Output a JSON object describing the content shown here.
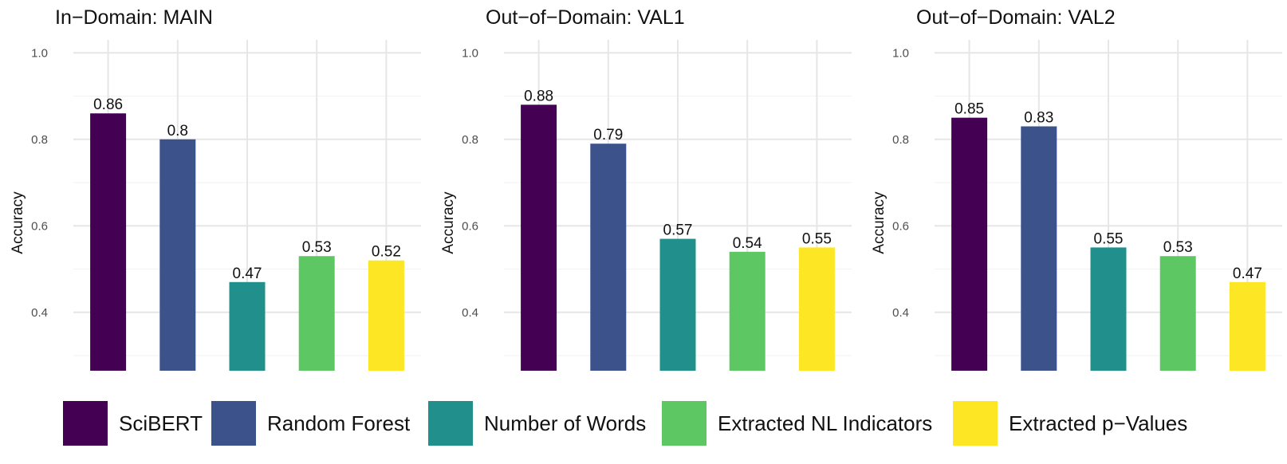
{
  "legend": [
    {
      "label": "SciBERT",
      "color": "#440154"
    },
    {
      "label": "Random Forest",
      "color": "#3B528B"
    },
    {
      "label": "Number of Words",
      "color": "#21908C"
    },
    {
      "label": "Extracted NL Indicators",
      "color": "#5DC863"
    },
    {
      "label": "Extracted p−Values",
      "color": "#FDE725"
    }
  ],
  "chart_data": [
    {
      "type": "bar",
      "title": "In−Domain: MAIN",
      "ylabel": "Accuracy",
      "xlabel": "",
      "categories": [
        "SciBERT",
        "Random Forest",
        "Number of Words",
        "Extracted NL Indicators",
        "Extracted p−Values"
      ],
      "values": [
        0.86,
        0.8,
        0.47,
        0.53,
        0.52
      ],
      "value_labels": [
        "0.86",
        "0.8",
        "0.47",
        "0.53",
        "0.52"
      ],
      "ylim": [
        0.265,
        1.03
      ],
      "yticks": [
        0.4,
        0.6,
        0.8,
        1.0
      ],
      "ytick_labels": [
        "0.4",
        "0.6",
        "0.8",
        "1.0"
      ],
      "grid": true,
      "legend": "bottom"
    },
    {
      "type": "bar",
      "title": "Out−of−Domain: VAL1",
      "ylabel": "Accuracy",
      "xlabel": "",
      "categories": [
        "SciBERT",
        "Random Forest",
        "Number of Words",
        "Extracted NL Indicators",
        "Extracted p−Values"
      ],
      "values": [
        0.88,
        0.79,
        0.57,
        0.54,
        0.55
      ],
      "value_labels": [
        "0.88",
        "0.79",
        "0.57",
        "0.54",
        "0.55"
      ],
      "ylim": [
        0.265,
        1.03
      ],
      "yticks": [
        0.4,
        0.6,
        0.8,
        1.0
      ],
      "ytick_labels": [
        "0.4",
        "0.6",
        "0.8",
        "1.0"
      ],
      "grid": true,
      "legend": "bottom"
    },
    {
      "type": "bar",
      "title": "Out−of−Domain: VAL2",
      "ylabel": "Accuracy",
      "xlabel": "",
      "categories": [
        "SciBERT",
        "Random Forest",
        "Number of Words",
        "Extracted NL Indicators",
        "Extracted p−Values"
      ],
      "values": [
        0.85,
        0.83,
        0.55,
        0.53,
        0.47
      ],
      "value_labels": [
        "0.85",
        "0.83",
        "0.55",
        "0.53",
        "0.47"
      ],
      "ylim": [
        0.265,
        1.03
      ],
      "yticks": [
        0.4,
        0.6,
        0.8,
        1.0
      ],
      "ytick_labels": [
        "0.4",
        "0.6",
        "0.8",
        "1.0"
      ],
      "grid": true,
      "legend": "bottom"
    }
  ]
}
